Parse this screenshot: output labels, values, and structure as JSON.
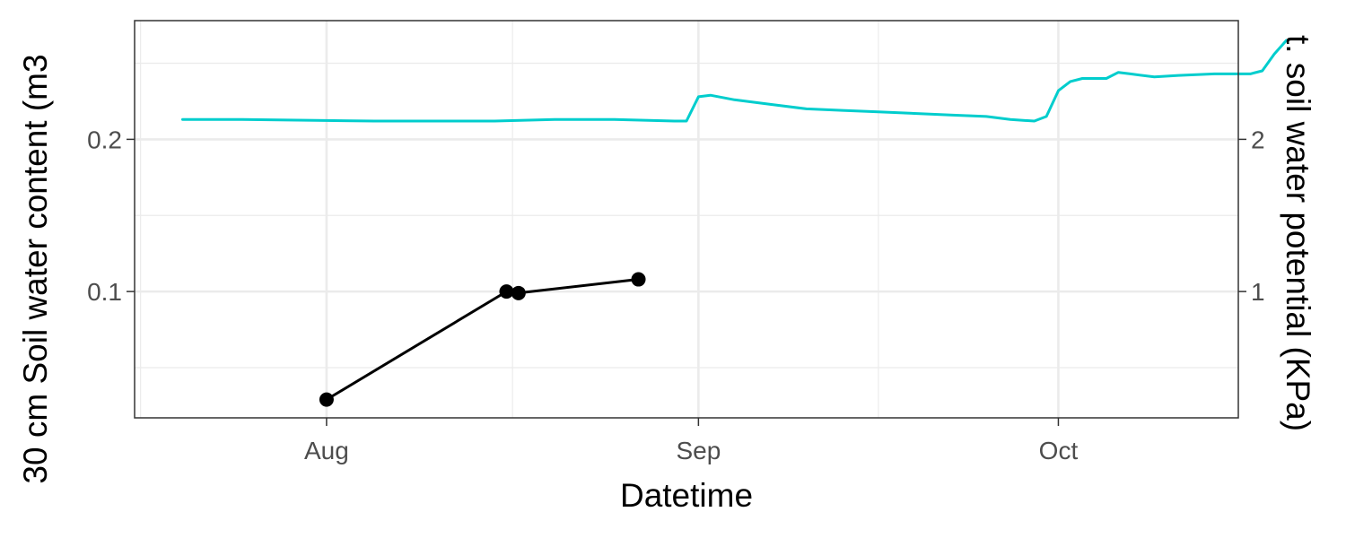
{
  "chart_data": {
    "type": "line",
    "title": "",
    "xlabel": "Datetime",
    "ylabel_left": "30 cm Soil water content (m3",
    "ylabel_right": "t. soil water potential (KPa)",
    "x_ticks": [
      "Aug",
      "Sep",
      "Oct"
    ],
    "x_tick_dates": [
      "2023-08-01",
      "2023-09-01",
      "2023-10-01"
    ],
    "xlim": [
      "2023-07-16",
      "2023-10-16"
    ],
    "y_left_ticks": [
      "0.1",
      "0.2"
    ],
    "y_left_tick_values": [
      0.1,
      0.2
    ],
    "y_left_lim": [
      0.017,
      0.278
    ],
    "y_right_ticks": [
      "1",
      "2"
    ],
    "y_right_tick_values": [
      1,
      2
    ],
    "grid": true,
    "legend": "none",
    "colors": {
      "water_content": "#00CDCD",
      "water_potential": "#000000"
    },
    "series": [
      {
        "axis": "left",
        "style": "line",
        "points": [
          [
            "2023-07-20",
            0.213
          ],
          [
            "2023-07-25",
            0.213
          ],
          [
            "2023-08-05",
            0.212
          ],
          [
            "2023-08-15",
            0.212
          ],
          [
            "2023-08-20",
            0.213
          ],
          [
            "2023-08-25",
            0.213
          ],
          [
            "2023-08-30",
            0.212
          ],
          [
            "2023-08-31",
            0.212
          ],
          [
            "2023-09-01",
            0.228
          ],
          [
            "2023-09-02",
            0.229
          ],
          [
            "2023-09-04",
            0.226
          ],
          [
            "2023-09-07",
            0.223
          ],
          [
            "2023-09-10",
            0.22
          ],
          [
            "2023-09-13",
            0.219
          ],
          [
            "2023-09-16",
            0.218
          ],
          [
            "2023-09-19",
            0.217
          ],
          [
            "2023-09-22",
            0.216
          ],
          [
            "2023-09-25",
            0.215
          ],
          [
            "2023-09-27",
            0.213
          ],
          [
            "2023-09-29",
            0.212
          ],
          [
            "2023-09-30",
            0.215
          ],
          [
            "2023-10-01",
            0.232
          ],
          [
            "2023-10-02",
            0.238
          ],
          [
            "2023-10-03",
            0.24
          ],
          [
            "2023-10-05",
            0.24
          ],
          [
            "2023-10-06",
            0.244
          ],
          [
            "2023-10-07",
            0.243
          ],
          [
            "2023-10-09",
            0.241
          ],
          [
            "2023-10-11",
            0.242
          ],
          [
            "2023-10-14",
            0.243
          ],
          [
            "2023-10-17",
            0.243
          ],
          [
            "2023-10-18",
            0.245
          ],
          [
            "2023-10-19",
            0.256
          ],
          [
            "2023-10-20",
            0.265
          ]
        ]
      },
      {
        "axis": "left",
        "style": "line+points",
        "points": [
          [
            "2023-08-01",
            0.029
          ],
          [
            "2023-08-16",
            0.1
          ],
          [
            "2023-08-17",
            0.099
          ],
          [
            "2023-08-27",
            0.108
          ]
        ]
      }
    ]
  }
}
